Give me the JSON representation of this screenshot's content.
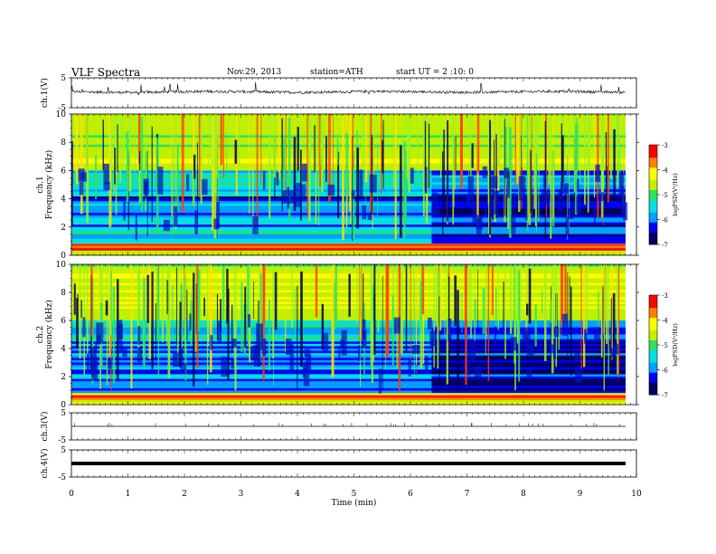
{
  "header": {
    "title": "VLF  Spectra",
    "date": "Nov.29, 2013",
    "station": "station=ATH",
    "start": "start  UT =   2  :10: 0"
  },
  "colors": {
    "scale": [
      "#000060",
      "#0000ff",
      "#00a0ff",
      "#00e0e0",
      "#30e060",
      "#c0f000",
      "#ffff00",
      "#ff8000",
      "#ff0000",
      "#ffffff"
    ]
  },
  "chart_data": [
    {
      "type": "line",
      "ylabel": "ch.1(V)",
      "ylim": [
        -5,
        5
      ],
      "yticks": [
        "5",
        "-5"
      ],
      "xlim": [
        0,
        10
      ],
      "note_baseline": 0.3
    },
    {
      "type": "heatmap",
      "ylabel": "ch.1\nFrequency  (kHz)",
      "ylabel_parts": [
        "ch.1",
        "Frequency  (kHz)"
      ],
      "ylim": [
        0,
        10
      ],
      "yticks": [
        "0",
        "2",
        "4",
        "6",
        "8",
        "10"
      ],
      "xlim": [
        0,
        10
      ],
      "colorbar": {
        "label": "logPSD(V²/Hz)",
        "ticks": [
          "-3",
          "-4",
          "-5",
          "-6",
          "-7"
        ],
        "range": [
          -7,
          -3
        ]
      }
    },
    {
      "type": "heatmap",
      "ylabel": "ch.2\nFrequency  (kHz)",
      "ylabel_parts": [
        "ch.2",
        "Frequency  (kHz)"
      ],
      "ylim": [
        0,
        10
      ],
      "yticks": [
        "0",
        "2",
        "4",
        "6",
        "8",
        "10"
      ],
      "xlim": [
        0,
        10
      ],
      "colorbar": {
        "label": "logPSD(V²/Hz)",
        "ticks": [
          "-3",
          "-4",
          "-5",
          "-6",
          "-7"
        ],
        "range": [
          -7,
          -3
        ]
      }
    },
    {
      "type": "line",
      "ylabel": "ch.3(V)",
      "ylim": [
        -5,
        5
      ],
      "yticks": [
        "5",
        "-5"
      ],
      "xlim": [
        0,
        10
      ]
    },
    {
      "type": "line",
      "ylabel": "ch.4(V)",
      "ylim": [
        -5,
        5
      ],
      "yticks": [
        "5",
        "-5"
      ],
      "xlim": [
        0,
        10
      ],
      "xlabel": "Time  (min)",
      "xticks": [
        "0",
        "1",
        "2",
        "3",
        "4",
        "5",
        "6",
        "7",
        "8",
        "9",
        "10"
      ]
    }
  ]
}
